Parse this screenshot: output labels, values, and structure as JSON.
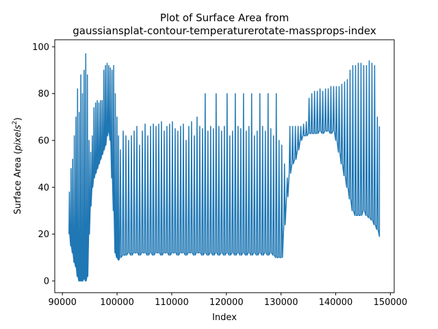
{
  "chart_data": {
    "type": "line",
    "title_line1": "Plot of Surface Area from",
    "title_line2": "gaussiansplat-contour-temperaturerotate-massprops-index",
    "xlabel": "Index",
    "ylabel_main": "Surface Area (",
    "ylabel_unit": "pixels",
    "ylabel_exp": "2",
    "ylabel_close": ")",
    "xlim": [
      88600,
      150700
    ],
    "ylim": [
      -5,
      103
    ],
    "xticks": [
      90000,
      100000,
      110000,
      120000,
      130000,
      140000,
      150000
    ],
    "xtick_labels": [
      "90000",
      "100000",
      "110000",
      "120000",
      "130000",
      "140000",
      "150000"
    ],
    "yticks": [
      0,
      20,
      40,
      60,
      80,
      100
    ],
    "ytick_labels": [
      "0",
      "20",
      "40",
      "60",
      "80",
      "100"
    ],
    "grid": false,
    "legend": "none",
    "series_color": "#1f77b4",
    "series": [
      {
        "x": [
          91200,
          91500,
          91800,
          92100,
          92400,
          92700,
          93000,
          93300,
          93600,
          93900,
          94200,
          94500,
          94800,
          95100,
          95400,
          95700,
          96000,
          96300,
          96600,
          96900,
          97200,
          97500,
          97800,
          98100,
          98400,
          98700,
          99000,
          99300,
          99600,
          99900,
          100200,
          100500,
          101000,
          101500,
          102000,
          102500,
          103000,
          103500,
          104000,
          104500,
          105000,
          105500,
          106000,
          106500,
          107000,
          107500,
          108000,
          108500,
          109000,
          109500,
          110000,
          110500,
          111000,
          111500,
          112000,
          112500,
          113000,
          113500,
          114000,
          114500,
          115000,
          115500,
          116000,
          116500,
          117000,
          117500,
          118000,
          118500,
          119000,
          119500,
          120000,
          120500,
          121000,
          121500,
          122000,
          122500,
          123000,
          123500,
          124000,
          124500,
          125000,
          125500,
          126000,
          126500,
          127000,
          127500,
          128000,
          128500,
          129000,
          129500,
          130000,
          130500,
          131000,
          131500,
          132000,
          132500,
          133000,
          133500,
          134000,
          134500,
          135000,
          135500,
          136000,
          136500,
          137000,
          137500,
          138000,
          138500,
          139000,
          139500,
          140000,
          140500,
          141000,
          141500,
          142000,
          142500,
          143000,
          143500,
          144000,
          144500,
          145000,
          145500,
          146000,
          146500,
          147000,
          147500,
          148000
        ],
        "y_max": [
          38,
          48,
          52,
          62,
          70,
          82,
          72,
          88,
          80,
          90,
          97,
          88,
          60,
          55,
          62,
          74,
          76,
          77,
          76,
          77,
          77,
          90,
          92,
          93,
          92,
          91,
          90,
          92,
          80,
          70,
          62,
          56,
          64,
          62,
          60,
          62,
          64,
          66,
          58,
          64,
          67,
          62,
          66,
          67,
          66,
          67,
          68,
          64,
          66,
          67,
          68,
          65,
          64,
          66,
          67,
          60,
          66,
          68,
          62,
          70,
          66,
          65,
          80,
          64,
          66,
          65,
          80,
          66,
          64,
          66,
          80,
          62,
          64,
          80,
          66,
          65,
          80,
          64,
          66,
          80,
          62,
          64,
          80,
          66,
          64,
          80,
          65,
          62,
          80,
          60,
          58,
          50,
          44,
          66,
          66,
          66,
          66,
          66,
          67,
          68,
          78,
          80,
          81,
          81,
          82,
          81,
          82,
          82,
          83,
          83,
          83,
          83,
          84,
          85,
          86,
          90,
          92,
          92,
          93,
          93,
          92,
          92,
          94,
          93,
          92,
          70,
          66
        ],
        "y_min": [
          20,
          15,
          12,
          8,
          6,
          2,
          0,
          0,
          0,
          1,
          0,
          2,
          20,
          32,
          40,
          44,
          46,
          48,
          50,
          52,
          54,
          56,
          58,
          62,
          64,
          60,
          44,
          30,
          12,
          10,
          9,
          10,
          11,
          11,
          12,
          11,
          12,
          12,
          11,
          12,
          12,
          11,
          12,
          11,
          12,
          12,
          11,
          12,
          12,
          11,
          12,
          12,
          11,
          12,
          12,
          11,
          12,
          12,
          11,
          12,
          12,
          11,
          12,
          11,
          12,
          11,
          12,
          11,
          12,
          11,
          12,
          11,
          12,
          11,
          12,
          11,
          12,
          11,
          12,
          11,
          12,
          11,
          12,
          11,
          12,
          11,
          12,
          11,
          10,
          10,
          10,
          24,
          36,
          46,
          50,
          52,
          56,
          60,
          62,
          62,
          63,
          63,
          63,
          63,
          64,
          63,
          64,
          64,
          63,
          64,
          60,
          55,
          50,
          45,
          40,
          35,
          30,
          28,
          28,
          28,
          30,
          28,
          27,
          26,
          24,
          22,
          19
        ]
      }
    ]
  }
}
